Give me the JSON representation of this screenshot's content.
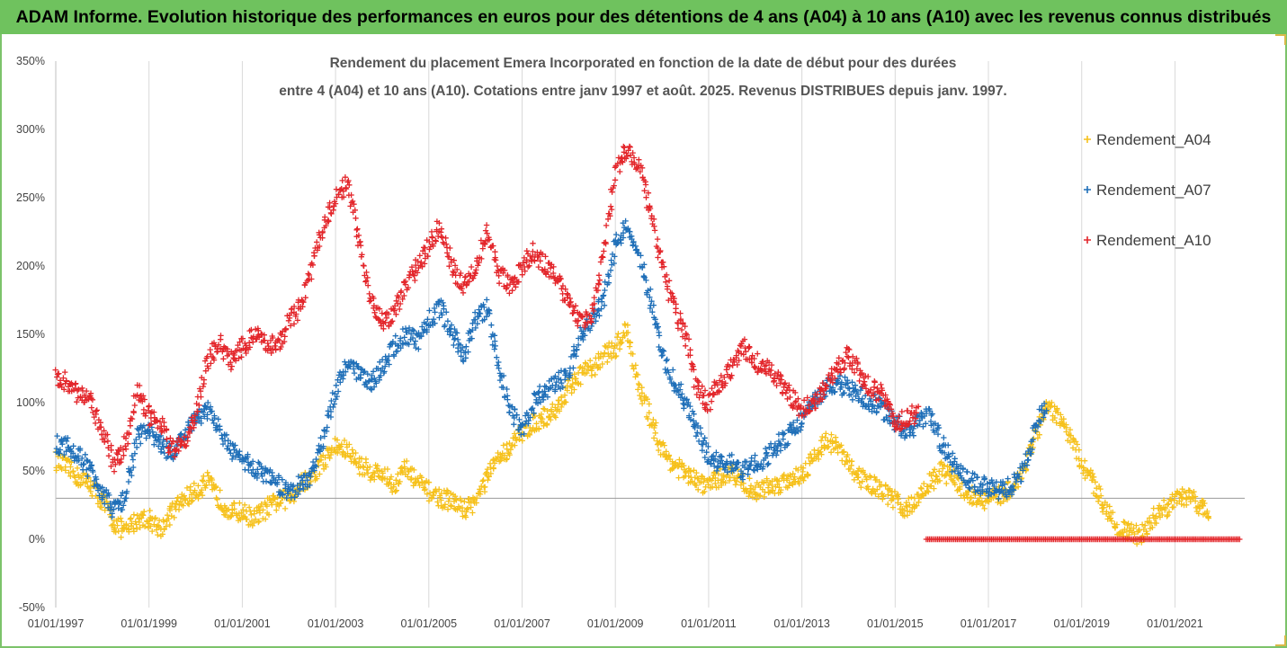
{
  "banner": {
    "title": "ADAM Informe. Evolution historique des performances en euros pour des détentions de 4 ans (A04) à 10 ans (A10) avec les revenus connus distribués"
  },
  "chart_data": {
    "type": "scatter",
    "title_line1": "Rendement du placement Emera Incorporated en fonction de la date de début pour des durées",
    "title_line2": "entre 4 (A04) et 10 ans (A10). Cotations entre janv 1997 et août. 2025. Revenus DISTRIBUES depuis janv. 1997.",
    "x_axis": {
      "type": "date",
      "min": "1997-01-01",
      "max": "2022-06-30",
      "ticks": [
        "01/01/1997",
        "01/01/1999",
        "01/01/2001",
        "01/01/2003",
        "01/01/2005",
        "01/01/2007",
        "01/01/2009",
        "01/01/2011",
        "01/01/2013",
        "01/01/2015",
        "01/01/2017",
        "01/01/2019",
        "01/01/2021"
      ],
      "grid": true
    },
    "y_axis": {
      "min": -50,
      "max": 350,
      "unit": "%",
      "ticks": [
        "-50%",
        "0%",
        "50%",
        "100%",
        "150%",
        "200%",
        "250%",
        "300%",
        "350%"
      ],
      "grid": false,
      "reference_line": 30
    },
    "legend_position": "right",
    "marker": "+",
    "series": [
      {
        "name": "Rendement_A04",
        "color": "#f6c11c",
        "points": [
          [
            "1997-01",
            58
          ],
          [
            "1997-04",
            52
          ],
          [
            "1997-07",
            45
          ],
          [
            "1997-10",
            40
          ],
          [
            "1998-01",
            28
          ],
          [
            "1998-04",
            12
          ],
          [
            "1998-07",
            5
          ],
          [
            "1998-10",
            15
          ],
          [
            "1999-01",
            15
          ],
          [
            "1999-04",
            8
          ],
          [
            "1999-07",
            20
          ],
          [
            "1999-10",
            30
          ],
          [
            "2000-01",
            35
          ],
          [
            "2000-04",
            42
          ],
          [
            "2000-07",
            30
          ],
          [
            "2000-10",
            20
          ],
          [
            "2001-01",
            20
          ],
          [
            "2001-04",
            15
          ],
          [
            "2001-07",
            22
          ],
          [
            "2001-10",
            28
          ],
          [
            "2002-01",
            30
          ],
          [
            "2002-04",
            40
          ],
          [
            "2002-07",
            45
          ],
          [
            "2002-10",
            58
          ],
          [
            "2003-01",
            68
          ],
          [
            "2003-04",
            65
          ],
          [
            "2003-07",
            55
          ],
          [
            "2003-10",
            50
          ],
          [
            "2004-01",
            48
          ],
          [
            "2004-04",
            40
          ],
          [
            "2004-07",
            52
          ],
          [
            "2004-10",
            42
          ],
          [
            "2005-01",
            35
          ],
          [
            "2005-04",
            30
          ],
          [
            "2005-07",
            28
          ],
          [
            "2005-10",
            22
          ],
          [
            "2006-01",
            28
          ],
          [
            "2006-04",
            45
          ],
          [
            "2006-07",
            60
          ],
          [
            "2006-10",
            68
          ],
          [
            "2007-01",
            78
          ],
          [
            "2007-04",
            85
          ],
          [
            "2007-07",
            90
          ],
          [
            "2007-10",
            95
          ],
          [
            "2008-01",
            110
          ],
          [
            "2008-04",
            120
          ],
          [
            "2008-07",
            125
          ],
          [
            "2008-10",
            135
          ],
          [
            "2009-01",
            140
          ],
          [
            "2009-04",
            155
          ],
          [
            "2009-07",
            110
          ],
          [
            "2009-10",
            90
          ],
          [
            "2010-01",
            65
          ],
          [
            "2010-04",
            55
          ],
          [
            "2010-07",
            48
          ],
          [
            "2010-10",
            42
          ],
          [
            "2011-01",
            40
          ],
          [
            "2011-04",
            45
          ],
          [
            "2011-07",
            50
          ],
          [
            "2011-10",
            40
          ],
          [
            "2012-01",
            35
          ],
          [
            "2012-04",
            38
          ],
          [
            "2012-07",
            40
          ],
          [
            "2012-10",
            45
          ],
          [
            "2013-01",
            48
          ],
          [
            "2013-04",
            60
          ],
          [
            "2013-07",
            72
          ],
          [
            "2013-10",
            68
          ],
          [
            "2014-01",
            55
          ],
          [
            "2014-04",
            45
          ],
          [
            "2014-07",
            40
          ],
          [
            "2014-10",
            35
          ],
          [
            "2015-01",
            28
          ],
          [
            "2015-04",
            22
          ],
          [
            "2015-07",
            30
          ],
          [
            "2015-10",
            42
          ],
          [
            "2016-01",
            50
          ],
          [
            "2016-04",
            45
          ],
          [
            "2016-07",
            35
          ],
          [
            "2016-10",
            30
          ],
          [
            "2017-01",
            28
          ],
          [
            "2017-04",
            32
          ],
          [
            "2017-07",
            38
          ],
          [
            "2017-10",
            50
          ],
          [
            "2018-01",
            75
          ],
          [
            "2018-04",
            95
          ],
          [
            "2018-07",
            90
          ],
          [
            "2018-10",
            75
          ],
          [
            "2019-01",
            55
          ],
          [
            "2019-04",
            40
          ],
          [
            "2019-07",
            25
          ],
          [
            "2019-10",
            10
          ],
          [
            "2020-01",
            5
          ],
          [
            "2020-04",
            2
          ],
          [
            "2020-07",
            15
          ],
          [
            "2020-10",
            22
          ],
          [
            "2021-01",
            28
          ],
          [
            "2021-04",
            32
          ],
          [
            "2021-07",
            25
          ],
          [
            "2021-10",
            20
          ]
        ]
      },
      {
        "name": "Rendement_A07",
        "color": "#1f6fb8",
        "points": [
          [
            "1997-01",
            70
          ],
          [
            "1997-04",
            68
          ],
          [
            "1997-07",
            60
          ],
          [
            "1997-10",
            50
          ],
          [
            "1998-01",
            35
          ],
          [
            "1998-04",
            20
          ],
          [
            "1998-07",
            32
          ],
          [
            "1998-10",
            75
          ],
          [
            "1999-01",
            80
          ],
          [
            "1999-04",
            70
          ],
          [
            "1999-07",
            62
          ],
          [
            "1999-10",
            75
          ],
          [
            "2000-01",
            88
          ],
          [
            "2000-04",
            95
          ],
          [
            "2000-07",
            80
          ],
          [
            "2000-10",
            65
          ],
          [
            "2001-01",
            58
          ],
          [
            "2001-04",
            52
          ],
          [
            "2001-07",
            48
          ],
          [
            "2001-10",
            40
          ],
          [
            "2002-01",
            35
          ],
          [
            "2002-04",
            40
          ],
          [
            "2002-07",
            48
          ],
          [
            "2002-10",
            75
          ],
          [
            "2003-01",
            110
          ],
          [
            "2003-04",
            130
          ],
          [
            "2003-07",
            120
          ],
          [
            "2003-10",
            115
          ],
          [
            "2004-01",
            125
          ],
          [
            "2004-04",
            140
          ],
          [
            "2004-07",
            150
          ],
          [
            "2004-10",
            145
          ],
          [
            "2005-01",
            160
          ],
          [
            "2005-04",
            170
          ],
          [
            "2005-07",
            150
          ],
          [
            "2005-10",
            135
          ],
          [
            "2006-01",
            160
          ],
          [
            "2006-04",
            170
          ],
          [
            "2006-07",
            125
          ],
          [
            "2006-10",
            95
          ],
          [
            "2007-01",
            80
          ],
          [
            "2007-04",
            100
          ],
          [
            "2007-07",
            110
          ],
          [
            "2007-10",
            115
          ],
          [
            "2008-01",
            120
          ],
          [
            "2008-04",
            150
          ],
          [
            "2008-07",
            160
          ],
          [
            "2008-10",
            175
          ],
          [
            "2009-01",
            215
          ],
          [
            "2009-04",
            230
          ],
          [
            "2009-07",
            210
          ],
          [
            "2009-10",
            175
          ],
          [
            "2010-01",
            135
          ],
          [
            "2010-04",
            115
          ],
          [
            "2010-07",
            100
          ],
          [
            "2010-10",
            80
          ],
          [
            "2011-01",
            60
          ],
          [
            "2011-04",
            55
          ],
          [
            "2011-07",
            55
          ],
          [
            "2011-10",
            50
          ],
          [
            "2012-01",
            55
          ],
          [
            "2012-04",
            60
          ],
          [
            "2012-07",
            70
          ],
          [
            "2012-10",
            78
          ],
          [
            "2013-01",
            88
          ],
          [
            "2013-04",
            100
          ],
          [
            "2013-07",
            110
          ],
          [
            "2013-10",
            115
          ],
          [
            "2014-01",
            110
          ],
          [
            "2014-04",
            105
          ],
          [
            "2014-07",
            100
          ],
          [
            "2014-10",
            95
          ],
          [
            "2015-01",
            85
          ],
          [
            "2015-04",
            80
          ],
          [
            "2015-07",
            85
          ],
          [
            "2015-10",
            90
          ],
          [
            "2016-01",
            70
          ],
          [
            "2016-04",
            55
          ],
          [
            "2016-07",
            45
          ],
          [
            "2016-10",
            40
          ],
          [
            "2017-01",
            38
          ],
          [
            "2017-04",
            35
          ],
          [
            "2017-07",
            40
          ],
          [
            "2017-10",
            50
          ],
          [
            "2018-01",
            80
          ],
          [
            "2018-04",
            100
          ]
        ]
      },
      {
        "name": "Rendement_A10",
        "color": "#e3262b",
        "points": [
          [
            "1997-01",
            120
          ],
          [
            "1997-04",
            115
          ],
          [
            "1997-07",
            105
          ],
          [
            "1997-10",
            100
          ],
          [
            "1998-01",
            80
          ],
          [
            "1998-04",
            55
          ],
          [
            "1998-07",
            70
          ],
          [
            "1998-10",
            110
          ],
          [
            "1999-01",
            90
          ],
          [
            "1999-04",
            85
          ],
          [
            "1999-07",
            65
          ],
          [
            "1999-10",
            70
          ],
          [
            "2000-01",
            90
          ],
          [
            "2000-04",
            130
          ],
          [
            "2000-07",
            145
          ],
          [
            "2000-10",
            130
          ],
          [
            "2001-01",
            140
          ],
          [
            "2001-04",
            150
          ],
          [
            "2001-07",
            145
          ],
          [
            "2001-10",
            140
          ],
          [
            "2002-01",
            160
          ],
          [
            "2002-04",
            170
          ],
          [
            "2002-07",
            200
          ],
          [
            "2002-10",
            230
          ],
          [
            "2003-01",
            250
          ],
          [
            "2003-04",
            260
          ],
          [
            "2003-07",
            220
          ],
          [
            "2003-10",
            175
          ],
          [
            "2004-01",
            160
          ],
          [
            "2004-04",
            165
          ],
          [
            "2004-07",
            185
          ],
          [
            "2004-10",
            200
          ],
          [
            "2005-01",
            215
          ],
          [
            "2005-04",
            230
          ],
          [
            "2005-07",
            200
          ],
          [
            "2005-10",
            185
          ],
          [
            "2006-01",
            200
          ],
          [
            "2006-04",
            225
          ],
          [
            "2006-07",
            195
          ],
          [
            "2006-10",
            185
          ],
          [
            "2007-01",
            200
          ],
          [
            "2007-04",
            210
          ],
          [
            "2007-07",
            200
          ],
          [
            "2007-10",
            190
          ],
          [
            "2008-01",
            175
          ],
          [
            "2008-04",
            160
          ],
          [
            "2008-07",
            165
          ],
          [
            "2008-10",
            210
          ],
          [
            "2009-01",
            270
          ],
          [
            "2009-04",
            285
          ],
          [
            "2009-07",
            275
          ],
          [
            "2009-10",
            240
          ],
          [
            "2010-01",
            200
          ],
          [
            "2010-04",
            170
          ],
          [
            "2010-07",
            150
          ],
          [
            "2010-10",
            110
          ],
          [
            "2011-01",
            100
          ],
          [
            "2011-04",
            115
          ],
          [
            "2011-07",
            125
          ],
          [
            "2011-10",
            140
          ],
          [
            "2012-01",
            130
          ],
          [
            "2012-04",
            125
          ],
          [
            "2012-07",
            115
          ],
          [
            "2012-10",
            105
          ],
          [
            "2013-01",
            95
          ],
          [
            "2013-04",
            100
          ],
          [
            "2013-07",
            110
          ],
          [
            "2013-10",
            125
          ],
          [
            "2014-01",
            135
          ],
          [
            "2014-04",
            120
          ],
          [
            "2014-07",
            110
          ],
          [
            "2014-10",
            105
          ],
          [
            "2015-01",
            85
          ],
          [
            "2015-04",
            90
          ],
          [
            "2015-07",
            92
          ]
        ],
        "zero_band": {
          "from": "2015-09",
          "to": "2022-06",
          "value": 0
        }
      }
    ]
  }
}
